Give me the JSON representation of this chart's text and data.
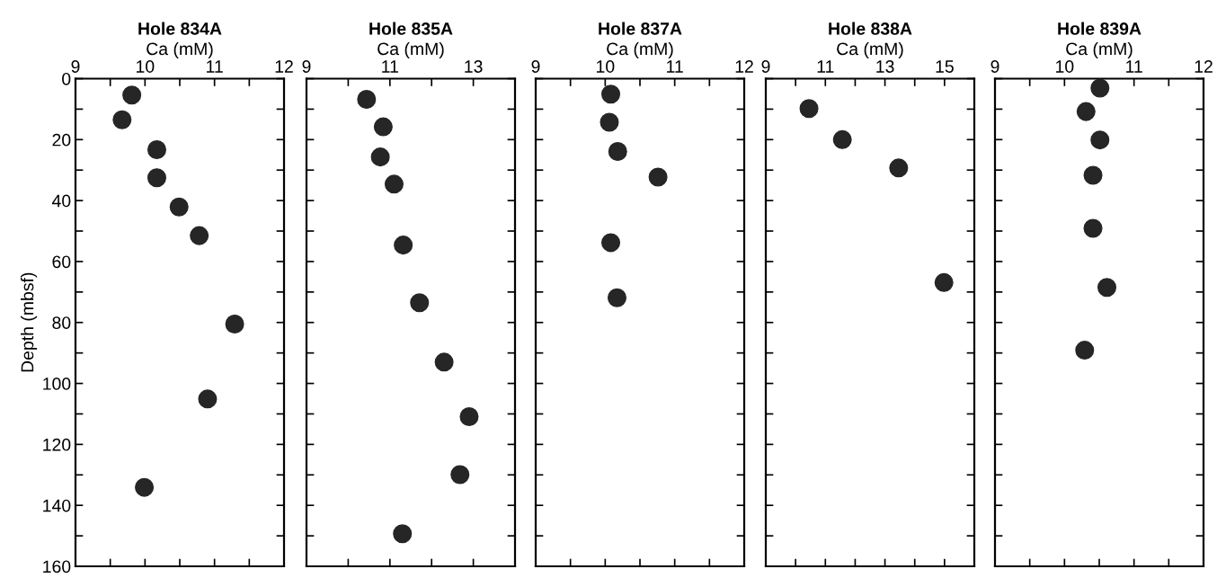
{
  "chart_data": [
    {
      "type": "scatter",
      "title": "Hole 834A",
      "xlabel": "Ca (mM)",
      "ylabel": "Depth (mbsf)",
      "marker": "circle",
      "series": [
        {
          "color": "#262626",
          "x": [
            9.81,
            9.67,
            10.17,
            10.17,
            10.49,
            10.78,
            11.29,
            10.9,
            9.99
          ],
          "values": [
            5.4,
            13.5,
            23.3,
            32.5,
            42.1,
            51.5,
            80.5,
            105.1,
            134.1
          ]
        }
      ],
      "xlim": [
        9,
        12
      ],
      "xticks": [
        9,
        {
          "value": 9.5,
          "label": null
        },
        10,
        {
          "value": 10.5,
          "label": null
        },
        11,
        {
          "value": 11.5,
          "label": null
        },
        12
      ],
      "ylim": [
        160,
        0
      ],
      "yticks": [
        0,
        {
          "value": 10,
          "label": null
        },
        20,
        {
          "value": 30,
          "label": null
        },
        40,
        {
          "value": 50,
          "label": null
        },
        60,
        {
          "value": 70,
          "label": null
        },
        80,
        {
          "value": 90,
          "label": null
        },
        100,
        {
          "value": 110,
          "label": null
        },
        120,
        {
          "value": 130,
          "label": null
        },
        140,
        {
          "value": 150,
          "label": null
        },
        160
      ]
    },
    {
      "type": "scatter",
      "title": "Hole 835A",
      "xlabel": "Ca (mM)",
      "marker": "circle",
      "tick_labels": "x",
      "series": [
        {
          "color": "#262626",
          "x": [
            10.44,
            10.84,
            10.77,
            11.1,
            11.32,
            11.71,
            12.3,
            12.9,
            12.68,
            11.3
          ],
          "values": [
            6.8,
            15.8,
            25.7,
            34.6,
            54.6,
            73.5,
            93.0,
            110.9,
            129.9,
            149.3
          ]
        }
      ],
      "xlim": [
        9,
        14
      ],
      "xticks": [
        9,
        {
          "value": 10,
          "label": null
        },
        11,
        {
          "value": 12,
          "label": null
        },
        13,
        {
          "value": 14,
          "label": null
        }
      ],
      "ylim": [
        160,
        0
      ],
      "yticks": [
        0,
        10,
        20,
        30,
        40,
        50,
        60,
        70,
        80,
        90,
        100,
        110,
        120,
        130,
        140,
        150,
        160
      ]
    },
    {
      "type": "scatter",
      "title": "Hole 837A",
      "xlabel": "Ca (mM)",
      "marker": "circle",
      "tick_labels": "x",
      "series": [
        {
          "color": "#262626",
          "x": [
            10.08,
            10.06,
            10.18,
            10.76,
            10.08,
            10.17
          ],
          "values": [
            5.1,
            14.3,
            23.9,
            32.3,
            53.8,
            71.9
          ]
        }
      ],
      "xlim": [
        9,
        12
      ],
      "xticks": [
        9,
        {
          "value": 9.5,
          "label": null
        },
        10,
        {
          "value": 10.5,
          "label": null
        },
        11,
        {
          "value": 11.5,
          "label": null
        },
        12
      ],
      "ylim": [
        160,
        0
      ],
      "yticks": [
        0,
        10,
        20,
        30,
        40,
        50,
        60,
        70,
        80,
        90,
        100,
        110,
        120,
        130,
        140,
        150,
        160
      ]
    },
    {
      "type": "scatter",
      "title": "Hole 838A",
      "xlabel": "Ca (mM)",
      "marker": "circle",
      "tick_labels": "x",
      "series": [
        {
          "color": "#262626",
          "x": [
            10.45,
            11.57,
            13.46,
            14.98
          ],
          "values": [
            9.8,
            20.0,
            29.3,
            66.9
          ]
        }
      ],
      "xlim": [
        9,
        16
      ],
      "xticks": [
        9,
        {
          "value": 10,
          "label": null
        },
        11,
        {
          "value": 12,
          "label": null
        },
        13,
        {
          "value": 14,
          "label": null
        },
        15,
        {
          "value": 16,
          "label": null
        }
      ],
      "ylim": [
        160,
        0
      ],
      "yticks": [
        0,
        10,
        20,
        30,
        40,
        50,
        60,
        70,
        80,
        90,
        100,
        110,
        120,
        130,
        140,
        150,
        160
      ]
    },
    {
      "type": "scatter",
      "title": "Hole 839A",
      "xlabel": "Ca (mM)",
      "marker": "circle",
      "tick_labels": "x",
      "series": [
        {
          "color": "#262626",
          "x": [
            10.51,
            10.31,
            10.51,
            10.41,
            10.41,
            10.61,
            10.29
          ],
          "values": [
            3.1,
            10.8,
            20.1,
            31.7,
            49.1,
            68.5,
            89.1
          ]
        }
      ],
      "xlim": [
        9,
        12
      ],
      "xticks": [
        9,
        {
          "value": 9.5,
          "label": null
        },
        10,
        {
          "value": 10.5,
          "label": null
        },
        11,
        {
          "value": 11.5,
          "label": null
        },
        12
      ],
      "ylim": [
        160,
        0
      ],
      "yticks": [
        0,
        10,
        20,
        30,
        40,
        50,
        60,
        70,
        80,
        90,
        100,
        110,
        120,
        130,
        140,
        150,
        160
      ]
    }
  ]
}
